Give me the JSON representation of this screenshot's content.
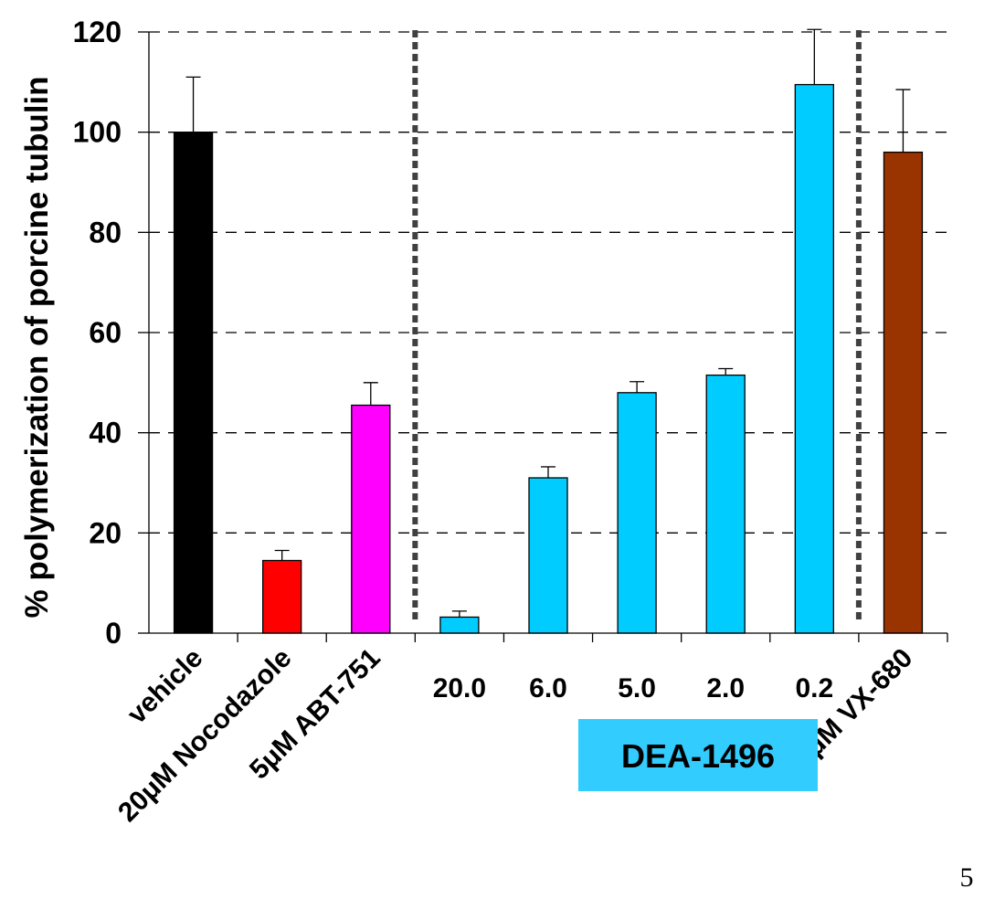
{
  "chart_data": {
    "type": "bar",
    "ylabel": "% polymerization of porcine tubulin",
    "ylim": [
      0,
      120
    ],
    "yticks": [
      0,
      20,
      40,
      60,
      80,
      100,
      120
    ],
    "grid": true,
    "categories": [
      "vehicle",
      "20μM Nocodazole",
      "5μM ABT-751",
      "20.0",
      "6.0",
      "5.0",
      "2.0",
      "0.2",
      "20 μM VX-680"
    ],
    "values": [
      100,
      14.5,
      45.5,
      3.2,
      31,
      48,
      51.5,
      109.5,
      96
    ],
    "errors": [
      11,
      2,
      4.5,
      1.2,
      2.2,
      2.2,
      1.3,
      11,
      12.5
    ],
    "colors": [
      "#000000",
      "#ff0000",
      "#ff00ff",
      "#00ccff",
      "#00ccff",
      "#00ccff",
      "#00ccff",
      "#00ccff",
      "#993300"
    ],
    "group_label": "DEA-1496",
    "group_label_color": "#33ccff"
  },
  "page_number": "5"
}
